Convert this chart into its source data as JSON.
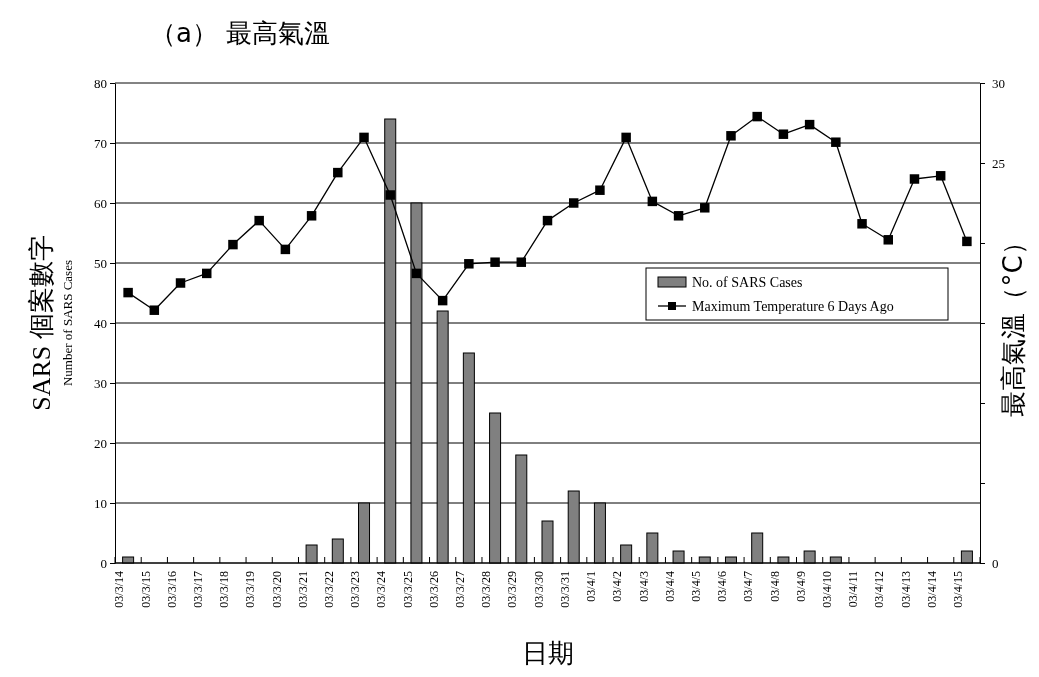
{
  "chart_data": {
    "type": "bar",
    "title": "（a） 最高氣溫",
    "xlabel": "日期",
    "ylabel": "SARS 個案數字\nNumber of SARS Cases",
    "y2label": "最高氣溫（°C）",
    "categories": [
      "03/3/14",
      "03/3/15",
      "03/3/16",
      "03/3/17",
      "03/3/18",
      "03/3/19",
      "03/3/20",
      "03/3/21",
      "03/3/22",
      "03/3/23",
      "03/3/24",
      "03/3/25",
      "03/3/26",
      "03/3/27",
      "03/3/28",
      "03/3/29",
      "03/3/30",
      "03/3/31",
      "03/4/1",
      "03/4/2",
      "03/4/3",
      "03/4/4",
      "03/4/5",
      "03/4/6",
      "03/4/7",
      "03/4/8",
      "03/4/9",
      "03/4/10",
      "03/4/11",
      "03/4/12",
      "03/4/13",
      "03/4/14",
      "03/4/15"
    ],
    "series": [
      {
        "name": "No. of SARS Cases",
        "color": "#808080",
        "values": [
          1,
          0,
          0,
          0,
          0,
          0,
          0,
          3,
          4,
          10,
          74,
          60,
          42,
          35,
          25,
          18,
          7,
          12,
          10,
          3,
          5,
          2,
          1,
          1,
          5,
          1,
          2,
          1,
          0,
          0,
          0,
          0,
          2
        ]
      },
      {
        "name": "Maximum Temperature 6 Days Ago",
        "type": "line",
        "axis": "y2",
        "color": "#000000",
        "marker": "square",
        "values": [
          16.9,
          15.8,
          17.5,
          18.1,
          19.9,
          21.4,
          19.6,
          21.7,
          24.4,
          26.6,
          23.0,
          18.1,
          16.4,
          18.7,
          18.8,
          18.8,
          21.4,
          22.5,
          23.3,
          26.6,
          22.6,
          21.7,
          22.2,
          26.7,
          27.9,
          26.8,
          27.4,
          26.3,
          21.2,
          20.2,
          24.0,
          24.2,
          20.1
        ]
      }
    ],
    "ylim": [
      0,
      80
    ],
    "yticks": [
      0,
      10,
      20,
      30,
      40,
      50,
      60,
      70,
      80
    ],
    "y2lim": [
      0,
      30
    ],
    "y2ticks": [
      0,
      {
        "value": 5,
        "label": null
      },
      {
        "value": 10,
        "label": null
      },
      {
        "value": 15,
        "label": null
      },
      {
        "value": 20,
        "label": null
      },
      25,
      30
    ],
    "grid": "y",
    "legend": "right"
  }
}
